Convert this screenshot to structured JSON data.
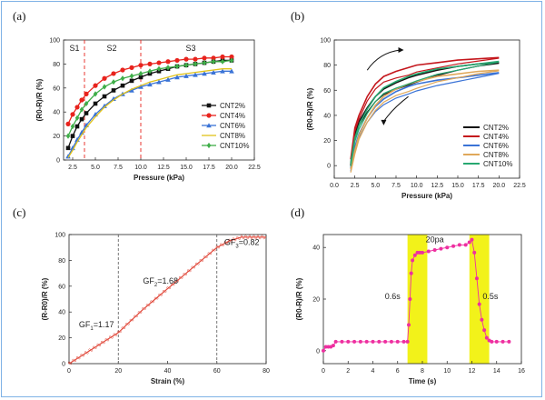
{
  "chart_data": [
    {
      "panel_label": "(a)",
      "type": "line",
      "xlabel": "Pressure (kPa)",
      "ylabel": "(R0-R)/R (%)",
      "xlim": [
        1.5,
        22.5
      ],
      "ylim": [
        0,
        100
      ],
      "xticks": [
        "2.5",
        "5.0",
        "7.5",
        "10.0",
        "12.5",
        "15.0",
        "17.5",
        "20.0",
        "22.5"
      ],
      "yticks": [
        "0",
        "20",
        "40",
        "60",
        "80",
        "100"
      ],
      "regions": [
        {
          "label": "S1",
          "x": 2.7
        },
        {
          "label": "S2",
          "x": 6.8
        },
        {
          "label": "S3",
          "x": 15.5
        }
      ],
      "dividers": [
        3.8,
        10.0
      ],
      "legend_position": "bottom-right",
      "series": [
        {
          "name": "CNT2%",
          "color": "#111111",
          "marker": "square",
          "x": [
            2.0,
            2.5,
            3.0,
            3.5,
            4.0,
            5.0,
            6.0,
            7.0,
            8.0,
            9.0,
            10.0,
            11.0,
            12.0,
            13.0,
            14.0,
            15.0,
            16.0,
            17.0,
            18.0,
            19.0,
            20.0
          ],
          "y": [
            10,
            20,
            28,
            34,
            39,
            47,
            53,
            58,
            62,
            66,
            69,
            72,
            74,
            76,
            78,
            79,
            80,
            81,
            82,
            83,
            83
          ]
        },
        {
          "name": "CNT4%",
          "color": "#e8231d",
          "marker": "circle",
          "x": [
            2.0,
            2.5,
            3.0,
            3.5,
            4.0,
            5.0,
            6.0,
            7.0,
            8.0,
            9.0,
            10.0,
            11.0,
            12.0,
            13.0,
            14.0,
            15.0,
            16.0,
            17.0,
            18.0,
            19.0,
            20.0
          ],
          "y": [
            30,
            38,
            44,
            50,
            55,
            62,
            68,
            72,
            75,
            77,
            79,
            80,
            81,
            82,
            83,
            84,
            84,
            85,
            85,
            86,
            86
          ]
        },
        {
          "name": "CNT6%",
          "color": "#3a73d6",
          "marker": "triangle",
          "x": [
            2.0,
            2.5,
            3.0,
            3.5,
            4.0,
            5.0,
            6.0,
            7.0,
            8.0,
            9.0,
            10.0,
            11.0,
            12.0,
            13.0,
            14.0,
            15.0,
            16.0,
            17.0,
            18.0,
            19.0,
            20.0
          ],
          "y": [
            3,
            10,
            17,
            23,
            29,
            38,
            45,
            51,
            55,
            58,
            61,
            63,
            65,
            67,
            69,
            70,
            71,
            72,
            73,
            74,
            74
          ]
        },
        {
          "name": "CNT8%",
          "color": "#e0c21a",
          "marker": "none",
          "x": [
            2.0,
            2.5,
            3.0,
            3.5,
            4.0,
            5.0,
            6.0,
            7.0,
            8.0,
            9.0,
            10.0,
            11.0,
            12.0,
            13.0,
            14.0,
            15.0,
            16.0,
            17.0,
            18.0,
            19.0,
            20.0
          ],
          "y": [
            2,
            8,
            15,
            21,
            27,
            36,
            44,
            50,
            55,
            59,
            62,
            65,
            67,
            69,
            71,
            72,
            73,
            74,
            75,
            76,
            76
          ]
        },
        {
          "name": "CNT10%",
          "color": "#3fae49",
          "marker": "diamond",
          "x": [
            2.0,
            2.5,
            3.0,
            3.5,
            4.0,
            5.0,
            6.0,
            7.0,
            8.0,
            9.0,
            10.0,
            11.0,
            12.0,
            13.0,
            14.0,
            15.0,
            16.0,
            17.0,
            18.0,
            19.0,
            20.0
          ],
          "y": [
            20,
            28,
            35,
            42,
            47,
            55,
            61,
            65,
            68,
            70,
            72,
            74,
            76,
            77,
            78,
            79,
            80,
            81,
            82,
            82,
            83
          ]
        }
      ]
    },
    {
      "panel_label": "(b)",
      "type": "line",
      "xlabel": "Pressure (kPa)",
      "ylabel": "(R0-R)/R (%)",
      "xlim": [
        0.0,
        22.5
      ],
      "ylim": [
        -10,
        100
      ],
      "xticks": [
        "0.0",
        "2.5",
        "5.0",
        "7.5",
        "10.0",
        "12.5",
        "15.0",
        "17.5",
        "20.0",
        "22.5"
      ],
      "yticks": [
        "0",
        "20",
        "40",
        "60",
        "80",
        "100"
      ],
      "legend_position": "bottom-right",
      "series": [
        {
          "name": "CNT2%",
          "color": "#111111",
          "x": [
            2.0,
            2.5,
            3.0,
            4.0,
            5.0,
            6.0,
            7.5,
            9.0,
            10.0,
            12.5,
            15.0,
            17.5,
            20.0
          ],
          "y": [
            0,
            25,
            35,
            46,
            55,
            61,
            66,
            70,
            72,
            76,
            79,
            81,
            82
          ]
        },
        {
          "name": "CNT4%",
          "color": "#c4161c",
          "x": [
            2.0,
            2.5,
            3.0,
            4.0,
            5.0,
            6.0,
            7.5,
            9.0,
            10.0,
            12.5,
            15.0,
            17.5,
            20.0
          ],
          "y": [
            5,
            30,
            40,
            55,
            65,
            71,
            75,
            78,
            80,
            82,
            84,
            85,
            86
          ]
        },
        {
          "name": "CNT6%",
          "color": "#3a73d6",
          "x": [
            2.0,
            2.5,
            3.0,
            4.0,
            5.0,
            6.0,
            7.5,
            9.0,
            10.0,
            12.5,
            15.0,
            17.5,
            20.0
          ],
          "y": [
            -2,
            15,
            25,
            38,
            47,
            53,
            59,
            63,
            65,
            68,
            70,
            72,
            74
          ]
        },
        {
          "name": "CNT8%",
          "color": "#e0a85a",
          "x": [
            2.0,
            2.5,
            3.0,
            4.0,
            5.0,
            6.0,
            7.5,
            9.0,
            10.0,
            12.5,
            15.0,
            17.5,
            20.0
          ],
          "y": [
            -3,
            12,
            24,
            38,
            48,
            55,
            61,
            65,
            67,
            71,
            73,
            75,
            76
          ]
        },
        {
          "name": "CNT10%",
          "color": "#27a870",
          "x": [
            2.0,
            2.5,
            3.0,
            4.0,
            5.0,
            6.0,
            7.5,
            9.0,
            10.0,
            12.5,
            15.0,
            17.5,
            20.0
          ],
          "y": [
            2,
            22,
            32,
            45,
            55,
            62,
            67,
            71,
            73,
            77,
            79,
            81,
            83
          ]
        }
      ]
    },
    {
      "panel_label": "(c)",
      "type": "line",
      "xlabel": "Strain (%)",
      "ylabel": "(R-R0)/R (%)",
      "xlim": [
        0,
        80
      ],
      "ylim": [
        0,
        100
      ],
      "xticks": [
        "0",
        "20",
        "40",
        "60",
        "80"
      ],
      "yticks": [
        "0",
        "20",
        "40",
        "60",
        "80",
        "100"
      ],
      "color": "#e14a3c",
      "dividers": [
        20,
        60
      ],
      "annotations": [
        {
          "main": "GF",
          "sub": "1",
          "value": "=1.17",
          "x": 4,
          "y": 28
        },
        {
          "main": "GF",
          "sub": "2",
          "value": "=1.68",
          "x": 30,
          "y": 62
        },
        {
          "main": "GF",
          "sub": "3",
          "value": "=0.82",
          "x": 63,
          "y": 92
        }
      ],
      "series": [
        {
          "name": "",
          "x": [
            0,
            5,
            10,
            15,
            20,
            25,
            30,
            35,
            40,
            45,
            50,
            55,
            60,
            65,
            70,
            75,
            80
          ],
          "y": [
            0,
            6,
            12,
            18,
            24,
            33,
            42,
            50,
            58,
            66,
            74,
            82,
            90,
            95,
            98,
            98,
            98
          ]
        }
      ]
    },
    {
      "panel_label": "(d)",
      "type": "scatter",
      "xlabel": "Time (s)",
      "ylabel": "(R0-R)/R (%)",
      "xlim": [
        0,
        16
      ],
      "ylim": [
        -5,
        45
      ],
      "xticks": [
        "0",
        "2",
        "4",
        "6",
        "8",
        "10",
        "12",
        "14",
        "16"
      ],
      "yticks": [
        "0",
        "20",
        "40"
      ],
      "color": "#ee2fa0",
      "highlight_color": "#f2f21a",
      "highlights": [
        [
          6.8,
          8.4
        ],
        [
          11.8,
          13.4
        ]
      ],
      "annotations": [
        {
          "text": "20pa",
          "x": 9.0,
          "y": 42
        },
        {
          "text": "0.6s",
          "x": 5.6,
          "y": 20
        },
        {
          "text": "0.5s",
          "x": 13.5,
          "y": 20
        }
      ],
      "series": [
        {
          "name": "",
          "x": [
            0,
            0.2,
            0.4,
            0.6,
            0.8,
            1.0,
            1.5,
            2.0,
            2.5,
            3.0,
            3.5,
            4.0,
            4.5,
            5.0,
            5.5,
            6.0,
            6.5,
            6.8,
            6.9,
            7.0,
            7.1,
            7.2,
            7.4,
            7.6,
            7.8,
            8.0,
            8.5,
            9.0,
            9.5,
            10.0,
            10.5,
            11.0,
            11.5,
            11.8,
            12.0,
            12.2,
            12.4,
            12.6,
            12.8,
            13.0,
            13.2,
            13.4,
            13.6,
            14.0,
            14.5,
            15.0
          ],
          "y": [
            0,
            1.5,
            1.5,
            1.5,
            2,
            3.5,
            3.5,
            3.5,
            3.5,
            3.5,
            3.5,
            3.5,
            3.5,
            3.5,
            3.5,
            3.5,
            3.5,
            3.5,
            10,
            20,
            30,
            35,
            37,
            38,
            38,
            38,
            38.5,
            39,
            39.5,
            40,
            40.5,
            41,
            41,
            42,
            43,
            38,
            28,
            18,
            12,
            8,
            5,
            4,
            3.5,
            3.5,
            3.5,
            3.5
          ]
        }
      ]
    }
  ]
}
